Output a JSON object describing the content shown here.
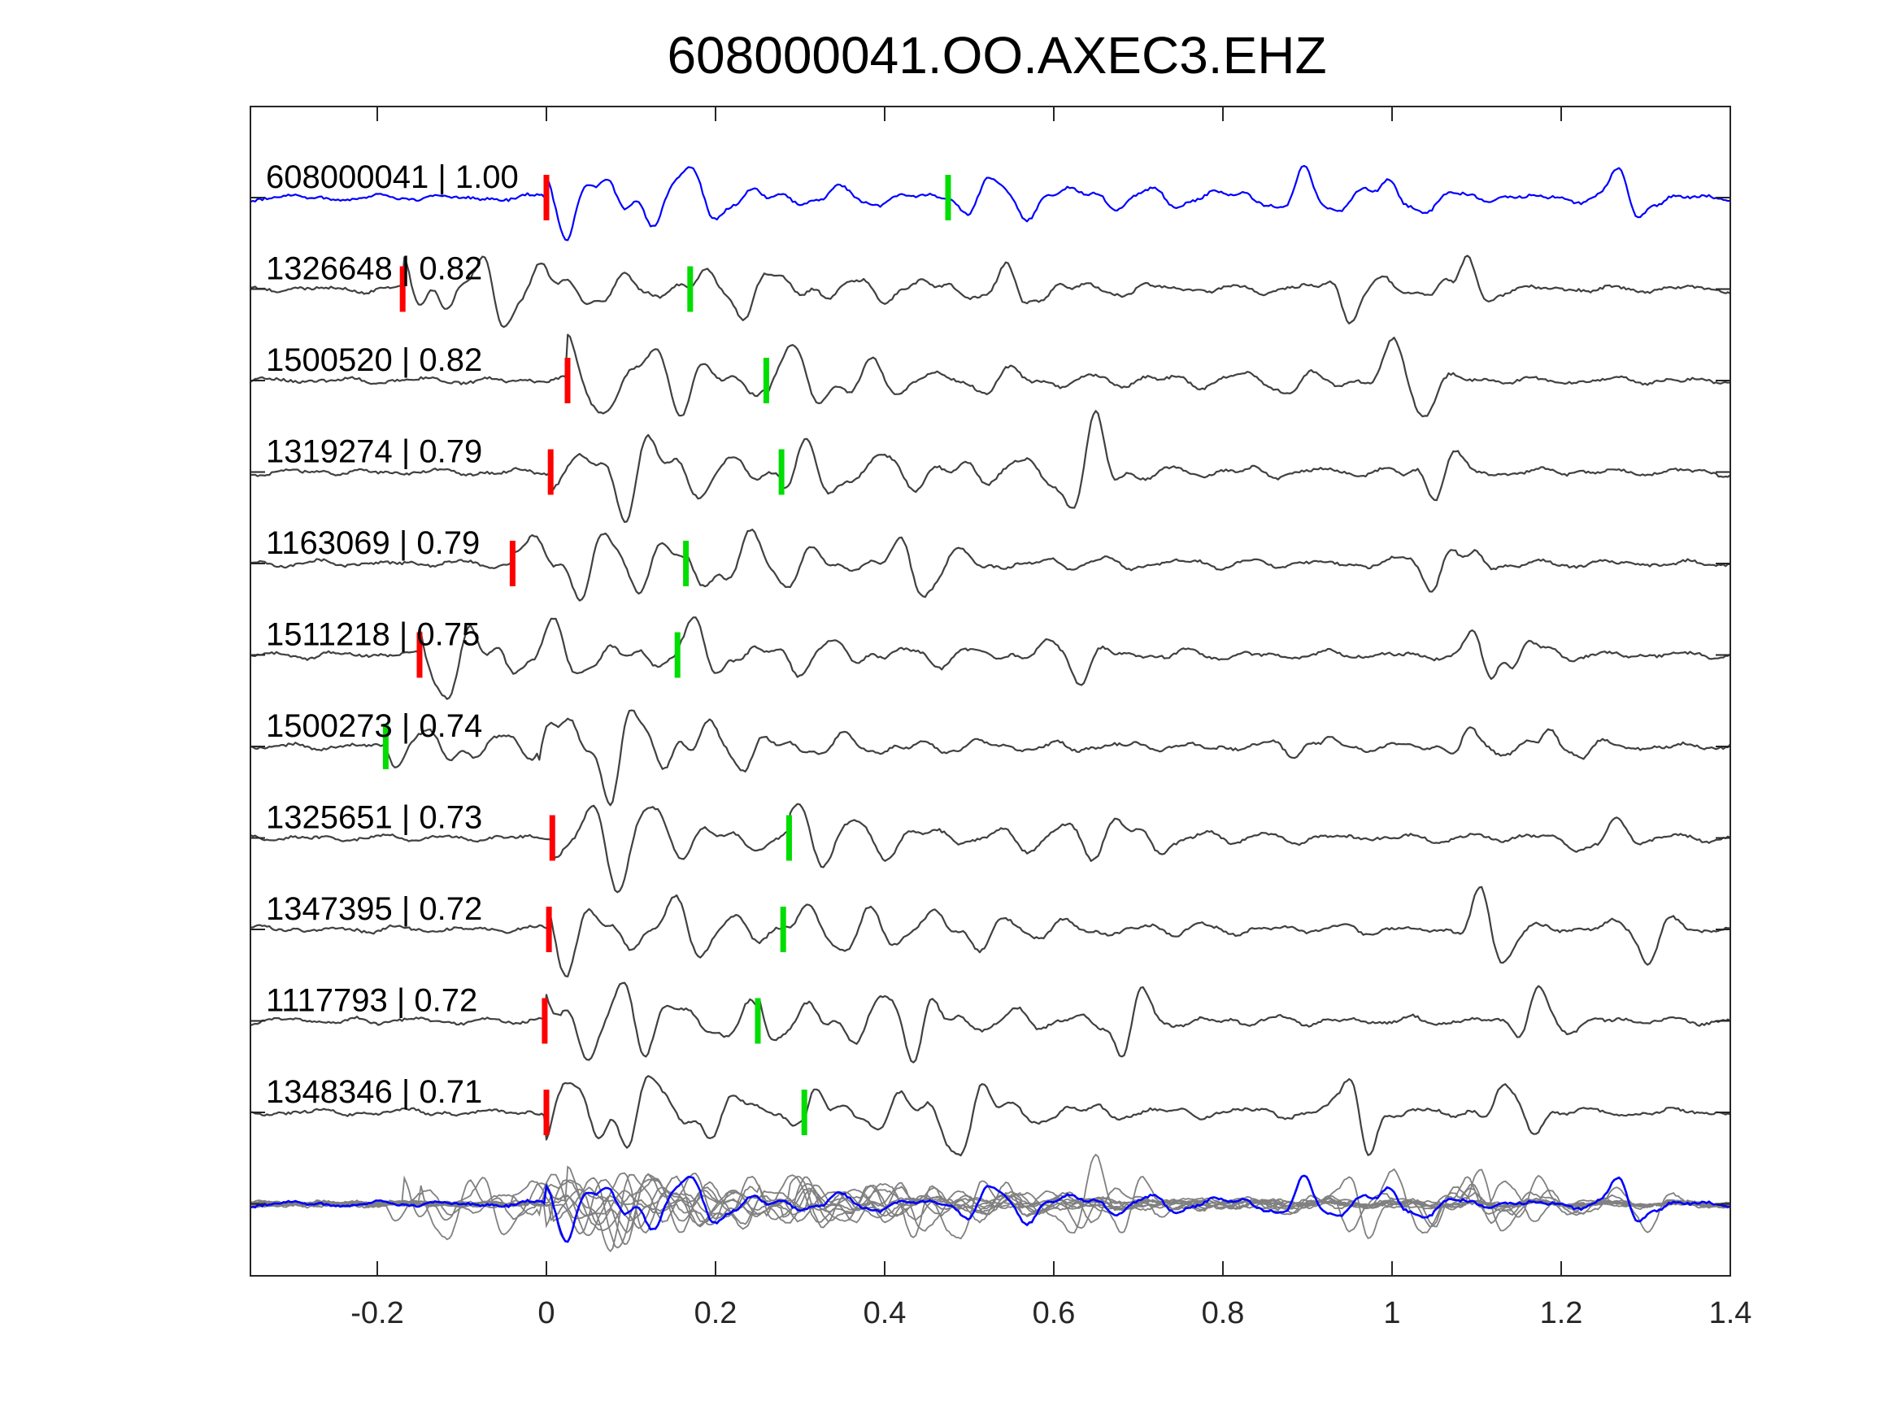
{
  "chart_data": {
    "type": "line",
    "title": "608000041.OO.AXEC3.EHZ",
    "xlabel": "",
    "ylabel": "",
    "xlim": [
      -0.35,
      1.4
    ],
    "grid": false,
    "x_ticks": [
      -0.2,
      0,
      0.2,
      0.4,
      0.6,
      0.8,
      1.0,
      1.2,
      1.4
    ],
    "x_tick_labels": [
      "-0.2",
      "0",
      "0.2",
      "0.4",
      "0.6",
      "0.8",
      "1",
      "1.2",
      "1.4"
    ],
    "traces": [
      {
        "event_id": "608000041",
        "correlation": "1.00",
        "label": "608000041 | 1.00",
        "color": "#0000ff",
        "p_pick": 0.0,
        "s_pick": 0.475
      },
      {
        "event_id": "1326648",
        "correlation": "0.82",
        "label": "1326648 | 0.82",
        "color": "#404040",
        "p_pick": -0.17,
        "s_pick": 0.17
      },
      {
        "event_id": "1500520",
        "correlation": "0.82",
        "label": "1500520 | 0.82",
        "color": "#404040",
        "p_pick": 0.025,
        "s_pick": 0.26
      },
      {
        "event_id": "1319274",
        "correlation": "0.79",
        "label": "1319274 | 0.79",
        "color": "#404040",
        "p_pick": 0.005,
        "s_pick": 0.278
      },
      {
        "event_id": "1163069",
        "correlation": "0.79",
        "label": "1163069 | 0.79",
        "color": "#404040",
        "p_pick": -0.04,
        "s_pick": 0.165
      },
      {
        "event_id": "1511218",
        "correlation": "0.75",
        "label": "1511218 | 0.75",
        "color": "#404040",
        "p_pick": -0.15,
        "s_pick": 0.155
      },
      {
        "event_id": "1500273",
        "correlation": "0.74",
        "label": "1500273 | 0.74",
        "color": "#404040",
        "p_pick": null,
        "s_pick": -0.19
      },
      {
        "event_id": "1325651",
        "correlation": "0.73",
        "label": "1325651 | 0.73",
        "color": "#404040",
        "p_pick": 0.007,
        "s_pick": 0.287
      },
      {
        "event_id": "1347395",
        "correlation": "0.72",
        "label": "1347395 | 0.72",
        "color": "#404040",
        "p_pick": 0.003,
        "s_pick": 0.28
      },
      {
        "event_id": "1117793",
        "correlation": "0.72",
        "label": "1117793 | 0.72",
        "color": "#404040",
        "p_pick": -0.002,
        "s_pick": 0.25
      },
      {
        "event_id": "1348346",
        "correlation": "0.71",
        "label": "1348346 | 0.71",
        "color": "#404040",
        "p_pick": 0.0,
        "s_pick": 0.305
      }
    ],
    "stack": {
      "reference_color": "#0000ff",
      "overlay_color": "#808080"
    },
    "colors": {
      "p_pick": "#ff0000",
      "s_pick": "#00dd00",
      "axes": "#262626"
    }
  }
}
